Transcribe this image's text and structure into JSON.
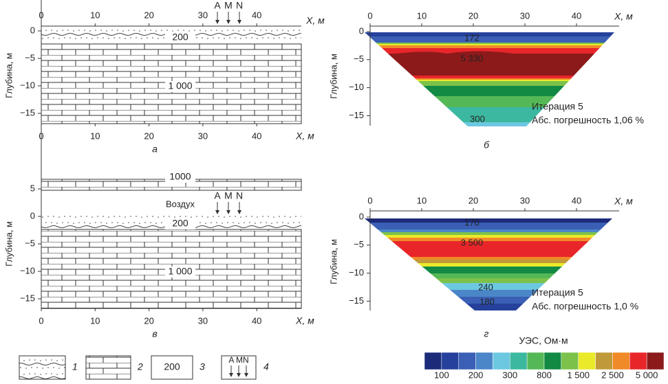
{
  "panels": [
    {
      "letter": "а",
      "x_label": "X, м",
      "y_label": "Глубина, м",
      "x_ticks_top": [
        "0",
        "10",
        "20",
        "30",
        "40"
      ],
      "x_ticks_bottom": [
        "0",
        "10",
        "20",
        "30",
        "40"
      ],
      "y_ticks": [
        "0",
        "−5",
        "−10",
        "−15"
      ],
      "electrodes": [
        "A",
        "M",
        "N"
      ],
      "layer_labels": [
        "200",
        "1 000"
      ]
    },
    {
      "letter": "б",
      "x_label": "X, м",
      "y_label": "Глубина, м",
      "x_ticks_top": [
        "0",
        "10",
        "20",
        "30",
        "40"
      ],
      "y_ticks": [
        "0",
        "−5",
        "−10",
        "−15"
      ],
      "values": [
        "172",
        "5 330",
        "300"
      ],
      "iteration": "Итерация 5",
      "error": "Абс. погрешность 1,06 %"
    },
    {
      "letter": "в",
      "x_label": "X, м",
      "y_label": "Глубина, м",
      "x_ticks_bottom": [
        "0",
        "10",
        "20",
        "30",
        "40"
      ],
      "y_ticks": [
        "5",
        "0",
        "−5",
        "−10",
        "−15"
      ],
      "electrodes": [
        "A",
        "M",
        "N"
      ],
      "air": "Воздух",
      "layer_labels": [
        "1000",
        "200",
        "1 000"
      ]
    },
    {
      "letter": "г",
      "x_label": "X, м",
      "y_label": "Глубина, м",
      "x_ticks_top": [
        "0",
        "10",
        "20",
        "30",
        "40"
      ],
      "y_ticks": [
        "0",
        "−5",
        "−10",
        "−15"
      ],
      "values": [
        "170",
        "3 500",
        "240",
        "180"
      ],
      "iteration": "Итерация 5",
      "error": "Абс. погрешность 1,0 %"
    }
  ],
  "legend": {
    "items": [
      "1",
      "2",
      "3",
      "4"
    ],
    "box_value": "200",
    "box_electrodes": "A MN"
  },
  "colorbar": {
    "title": "УЭС, Ом·м",
    "labels": [
      "100",
      "200",
      "300",
      "800",
      "1 500",
      "2 500",
      "5 000"
    ]
  }
}
